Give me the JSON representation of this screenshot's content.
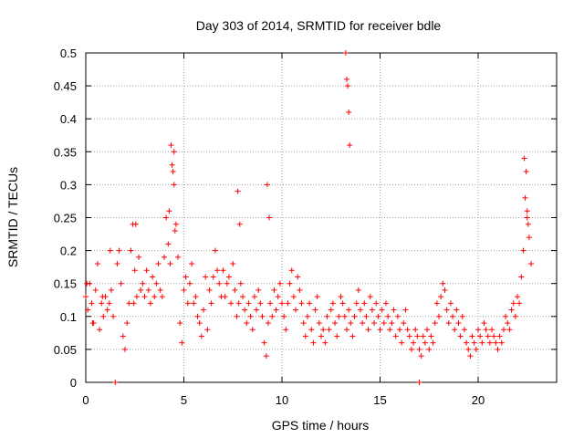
{
  "chart_data": {
    "type": "scatter",
    "title": "Day 303 of 2014, SRMTID for receiver bdle",
    "xlabel": "GPS time / hours",
    "ylabel": "SRMTID / TECUs",
    "xlim": [
      0,
      24
    ],
    "ylim": [
      0,
      0.5
    ],
    "xticks": [
      0,
      5,
      10,
      15,
      20
    ],
    "yticks": [
      0,
      0.05,
      0.1,
      0.15,
      0.2,
      0.25,
      0.3,
      0.35,
      0.4,
      0.45,
      0.5
    ],
    "ytick_labels": [
      "0",
      "0.05",
      "0.1",
      "0.15",
      "0.2",
      "0.25",
      "0.3",
      "0.35",
      "0.4",
      "0.45",
      "0.5"
    ],
    "grid": true,
    "marker": "+",
    "color": "#ff0000",
    "series": [
      {
        "name": "SRMTID",
        "x": [
          0.0,
          0.1,
          0.2,
          0.3,
          0.4,
          0.5,
          0.6,
          0.7,
          0.8,
          0.9,
          1.0,
          1.1,
          1.2,
          1.3,
          1.4,
          1.6,
          1.7,
          1.8,
          1.9,
          2.0,
          2.1,
          2.2,
          2.3,
          2.4,
          2.5,
          2.6,
          2.7,
          2.8,
          2.9,
          3.0,
          3.1,
          3.2,
          3.3,
          3.4,
          3.5,
          3.6,
          3.7,
          3.8,
          3.9,
          4.0,
          4.1,
          4.2,
          4.3,
          4.4,
          4.5,
          4.6,
          4.7,
          4.8,
          4.9,
          5.0,
          5.1,
          5.2,
          5.3,
          5.4,
          5.5,
          5.6,
          5.7,
          5.8,
          5.9,
          6.0,
          6.1,
          6.2,
          6.3,
          6.4,
          6.5,
          6.6,
          6.7,
          6.8,
          6.9,
          7.0,
          7.1,
          7.2,
          7.3,
          7.4,
          7.5,
          7.6,
          7.7,
          7.8,
          7.9,
          8.0,
          8.1,
          8.2,
          8.3,
          8.4,
          8.5,
          8.6,
          8.7,
          8.8,
          8.9,
          9.0,
          9.1,
          9.2,
          9.3,
          9.4,
          9.5,
          9.6,
          9.7,
          9.8,
          9.9,
          10.0,
          10.1,
          10.2,
          10.3,
          10.4,
          10.5,
          10.6,
          10.7,
          10.8,
          10.9,
          11.0,
          11.1,
          11.2,
          11.3,
          11.4,
          11.5,
          11.6,
          11.7,
          11.8,
          11.9,
          12.0,
          12.1,
          12.2,
          12.3,
          12.4,
          12.5,
          12.6,
          12.7,
          12.8,
          12.9,
          13.0,
          13.1,
          13.2,
          13.3,
          13.4,
          13.5,
          13.6,
          13.7,
          13.8,
          13.9,
          14.0,
          14.1,
          14.2,
          14.3,
          14.4,
          14.5,
          14.6,
          14.7,
          14.8,
          14.9,
          15.0,
          15.1,
          15.2,
          15.3,
          15.4,
          15.5,
          15.6,
          15.7,
          15.8,
          15.9,
          16.0,
          16.1,
          16.2,
          16.3,
          16.4,
          16.5,
          16.6,
          16.7,
          16.8,
          16.9,
          17.0,
          17.1,
          17.2,
          17.3,
          17.4,
          17.5,
          17.6,
          17.7,
          17.8,
          17.9,
          18.0,
          18.1,
          18.2,
          18.3,
          18.4,
          18.5,
          18.6,
          18.7,
          18.8,
          18.9,
          19.0,
          19.1,
          19.2,
          19.3,
          19.4,
          19.5,
          19.6,
          19.7,
          19.8,
          19.9,
          20.0,
          20.1,
          20.2,
          20.3,
          20.4,
          20.5,
          20.6,
          20.7,
          20.8,
          20.9,
          21.0,
          21.1,
          21.2,
          21.3,
          21.4,
          21.5,
          21.6,
          21.7,
          21.8,
          21.9,
          22.0,
          22.1,
          22.2,
          22.3,
          22.4,
          22.5,
          22.6,
          22.7,
          0.05,
          0.35,
          0.85,
          1.25,
          2.45,
          2.55,
          4.25,
          4.35,
          4.45,
          4.5,
          4.55,
          7.75,
          7.85,
          9.25,
          9.35,
          13.25,
          13.3,
          13.35,
          13.4,
          13.45,
          22.35,
          22.45,
          22.5,
          22.55,
          1.5,
          17.0
        ],
        "y": [
          0.13,
          0.11,
          0.15,
          0.12,
          0.09,
          0.14,
          0.18,
          0.08,
          0.12,
          0.1,
          0.13,
          0.11,
          0.12,
          0.14,
          0.1,
          0.18,
          0.2,
          0.15,
          0.07,
          0.05,
          0.09,
          0.12,
          0.2,
          0.24,
          0.17,
          0.13,
          0.19,
          0.14,
          0.15,
          0.13,
          0.17,
          0.14,
          0.12,
          0.16,
          0.13,
          0.15,
          0.18,
          0.14,
          0.13,
          0.19,
          0.25,
          0.21,
          0.18,
          0.33,
          0.35,
          0.24,
          0.19,
          0.09,
          0.06,
          0.14,
          0.16,
          0.12,
          0.15,
          0.18,
          0.12,
          0.13,
          0.1,
          0.09,
          0.07,
          0.11,
          0.16,
          0.08,
          0.14,
          0.12,
          0.16,
          0.2,
          0.17,
          0.15,
          0.13,
          0.17,
          0.13,
          0.15,
          0.16,
          0.12,
          0.18,
          0.14,
          0.1,
          0.12,
          0.15,
          0.13,
          0.11,
          0.09,
          0.12,
          0.1,
          0.08,
          0.13,
          0.11,
          0.14,
          0.12,
          0.1,
          0.06,
          0.04,
          0.09,
          0.12,
          0.1,
          0.14,
          0.11,
          0.13,
          0.15,
          0.12,
          0.1,
          0.08,
          0.12,
          0.15,
          0.17,
          0.13,
          0.11,
          0.16,
          0.14,
          0.12,
          0.09,
          0.07,
          0.1,
          0.12,
          0.08,
          0.06,
          0.11,
          0.13,
          0.09,
          0.07,
          0.08,
          0.06,
          0.1,
          0.08,
          0.11,
          0.12,
          0.09,
          0.07,
          0.1,
          0.13,
          0.12,
          0.1,
          0.08,
          0.11,
          0.09,
          0.07,
          0.1,
          0.12,
          0.14,
          0.11,
          0.09,
          0.12,
          0.1,
          0.08,
          0.13,
          0.11,
          0.09,
          0.12,
          0.1,
          0.08,
          0.11,
          0.09,
          0.12,
          0.1,
          0.08,
          0.09,
          0.11,
          0.07,
          0.1,
          0.08,
          0.06,
          0.09,
          0.11,
          0.08,
          0.07,
          0.05,
          0.06,
          0.08,
          0.07,
          0.05,
          0.04,
          0.07,
          0.06,
          0.08,
          0.05,
          0.07,
          0.06,
          0.09,
          0.12,
          0.1,
          0.13,
          0.15,
          0.14,
          0.11,
          0.09,
          0.12,
          0.1,
          0.08,
          0.11,
          0.09,
          0.07,
          0.1,
          0.08,
          0.06,
          0.05,
          0.04,
          0.07,
          0.06,
          0.05,
          0.08,
          0.07,
          0.06,
          0.09,
          0.08,
          0.07,
          0.06,
          0.08,
          0.07,
          0.06,
          0.05,
          0.07,
          0.06,
          0.08,
          0.1,
          0.09,
          0.08,
          0.11,
          0.12,
          0.1,
          0.13,
          0.12,
          0.16,
          0.2,
          0.28,
          0.25,
          0.22,
          0.18,
          0.15,
          0.09,
          0.13,
          0.2,
          0.12,
          0.24,
          0.26,
          0.36,
          0.32,
          0.3,
          0.23,
          0.29,
          0.24,
          0.3,
          0.25,
          0.5,
          0.46,
          0.45,
          0.41,
          0.36,
          0.34,
          0.32,
          0.26,
          0.24,
          0.0,
          0.0
        ]
      }
    ]
  }
}
